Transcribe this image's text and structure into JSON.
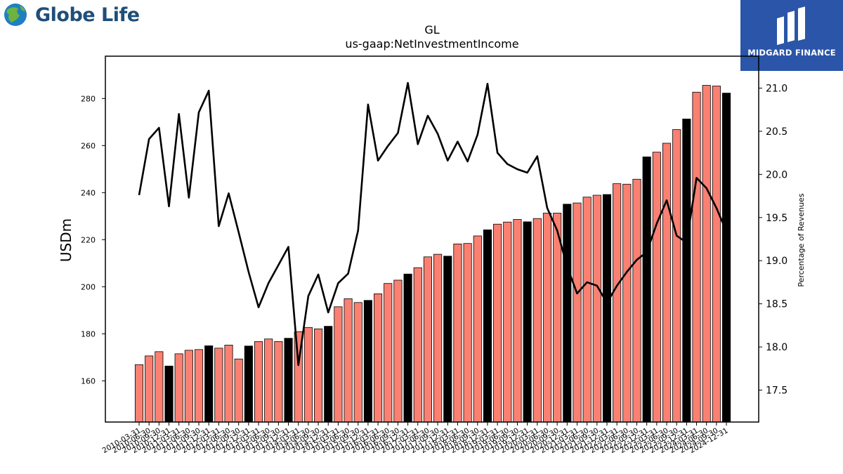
{
  "header": {
    "company_logo_text": "Globe Life",
    "brand_badge_text": "MIDGARD FINANCE"
  },
  "colors": {
    "bar_default": "#fa8072",
    "bar_highlight": "#000000",
    "line": "#000000",
    "brand_background": "#2b55a8",
    "logo_text": "#1f4e79"
  },
  "chart_data": {
    "type": "bar",
    "title": "GL",
    "subtitle": "us-gaap:NetInvestmentIncome",
    "ylabel": "USDm",
    "y2label": "Percentage of Revenues",
    "ylim": [
      142.5,
      298
    ],
    "y2lim": [
      17.13,
      21.37
    ],
    "yticks": [
      160,
      180,
      200,
      220,
      240,
      260,
      280
    ],
    "y2ticks": [
      17.5,
      18.0,
      18.5,
      19.0,
      19.5,
      20.0,
      20.5,
      21.0
    ],
    "y2tick_labels": [
      "17.5",
      "18.0",
      "18.5",
      "19.0",
      "19.5",
      "20.0",
      "20.5",
      "21.0"
    ],
    "categories": [
      "2010-03-31",
      "2010-06-30",
      "2010-09-30",
      "2010-12-31",
      "2011-03-31",
      "2011-06-30",
      "2011-09-30",
      "2011-12-31",
      "2012-03-31",
      "2012-06-30",
      "2012-09-30",
      "2012-12-31",
      "2013-03-31",
      "2013-06-30",
      "2013-09-30",
      "2013-12-31",
      "2014-03-31",
      "2014-06-30",
      "2014-09-30",
      "2014-12-31",
      "2015-03-31",
      "2015-06-30",
      "2015-09-30",
      "2015-12-31",
      "2016-03-31",
      "2016-06-30",
      "2016-09-30",
      "2016-12-31",
      "2017-03-31",
      "2017-06-30",
      "2017-09-30",
      "2017-12-31",
      "2018-03-31",
      "2018-06-30",
      "2018-09-30",
      "2018-12-31",
      "2019-03-31",
      "2019-06-30",
      "2019-09-30",
      "2019-12-31",
      "2020-03-31",
      "2020-06-30",
      "2020-09-30",
      "2020-12-31",
      "2021-03-31",
      "2021-06-30",
      "2021-09-30",
      "2021-12-31",
      "2022-03-31",
      "2022-06-30",
      "2022-09-30",
      "2022-12-31",
      "2023-03-31",
      "2023-06-30",
      "2023-09-30",
      "2023-12-31",
      "2024-03-31",
      "2024-06-30",
      "2024-09-30",
      "2024-12-31"
    ],
    "series": [
      {
        "type": "bar",
        "axis": "left",
        "values": [
          166.9,
          170.6,
          172.4,
          166.3,
          171.5,
          173.0,
          173.3,
          174.9,
          173.9,
          175.2,
          169.3,
          174.8,
          176.7,
          177.8,
          176.7,
          178.1,
          180.9,
          182.7,
          182.1,
          183.2,
          191.5,
          194.9,
          193.3,
          194.2,
          197.0,
          201.4,
          202.8,
          205.4,
          208.1,
          212.7,
          213.8,
          213.0,
          218.2,
          218.4,
          221.6,
          224.2,
          226.6,
          227.5,
          228.6,
          227.6,
          229.0,
          231.3,
          231.3,
          235.1,
          235.6,
          238.1,
          238.9,
          239.2,
          243.8,
          243.6,
          245.7,
          255.2,
          257.2,
          261.0,
          266.8,
          271.3,
          282.7,
          285.6,
          285.3,
          282.3
        ],
        "highlight": [
          false,
          false,
          false,
          true,
          false,
          false,
          false,
          true,
          false,
          false,
          false,
          true,
          false,
          false,
          false,
          true,
          false,
          false,
          false,
          true,
          false,
          false,
          false,
          true,
          false,
          false,
          false,
          true,
          false,
          false,
          false,
          true,
          false,
          false,
          false,
          true,
          false,
          false,
          false,
          true,
          false,
          false,
          false,
          true,
          false,
          false,
          false,
          true,
          false,
          false,
          false,
          true,
          false,
          false,
          false,
          true,
          false,
          false,
          false,
          true
        ]
      },
      {
        "type": "line",
        "axis": "right",
        "values": [
          19.76,
          20.41,
          20.54,
          19.63,
          20.7,
          19.73,
          20.72,
          20.97,
          19.4,
          19.78,
          19.33,
          18.87,
          18.46,
          18.74,
          18.95,
          19.16,
          17.79,
          18.59,
          18.84,
          18.4,
          18.74,
          18.85,
          19.35,
          20.81,
          20.16,
          20.33,
          20.48,
          21.06,
          20.35,
          20.68,
          20.47,
          20.16,
          20.38,
          20.15,
          20.46,
          21.05,
          20.25,
          20.12,
          20.06,
          20.02,
          20.21,
          19.61,
          19.35,
          18.93,
          18.62,
          18.75,
          18.71,
          18.51,
          18.71,
          18.87,
          19.01,
          19.1,
          19.43,
          19.7,
          19.29,
          19.21,
          19.96,
          19.84,
          19.61,
          19.34
        ]
      }
    ],
    "grid": false,
    "legend": "none"
  }
}
